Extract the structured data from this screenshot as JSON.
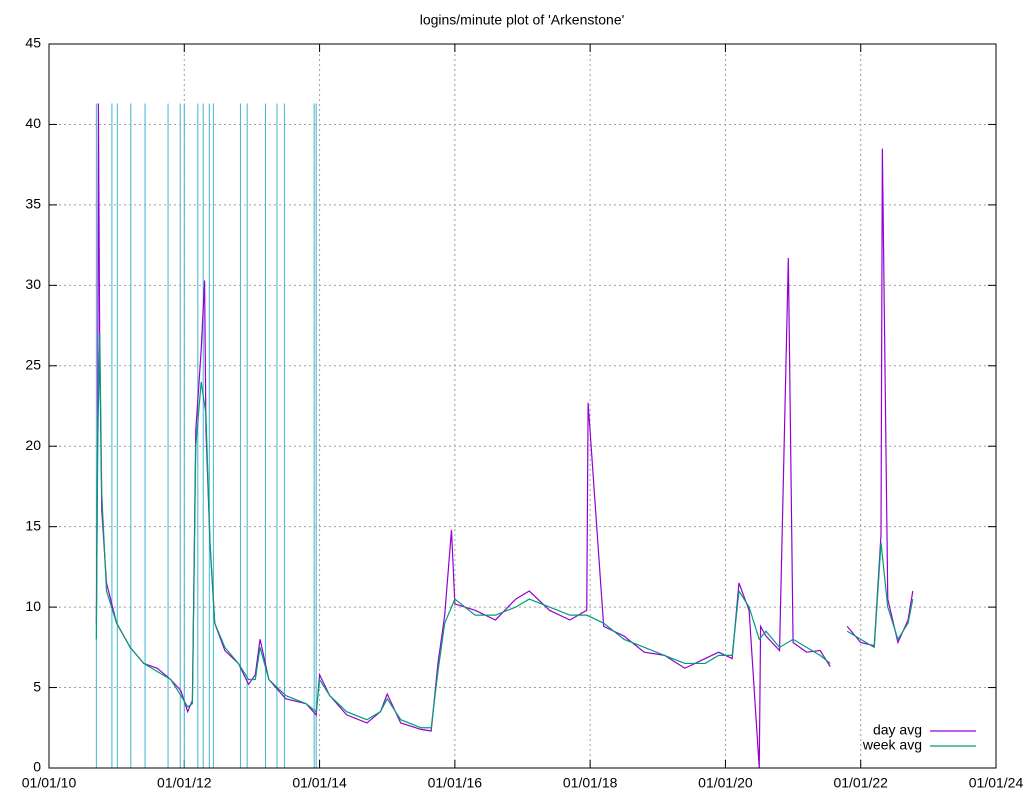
{
  "chart_data": {
    "type": "line",
    "title": "logins/minute plot of 'Arkenstone'",
    "xlim": [
      2010,
      2024
    ],
    "xticks": [
      {
        "value": 2010,
        "label": "01/01/10"
      },
      {
        "value": 2012,
        "label": "01/01/12"
      },
      {
        "value": 2014,
        "label": "01/01/14"
      },
      {
        "value": 2016,
        "label": "01/01/16"
      },
      {
        "value": 2018,
        "label": "01/01/18"
      },
      {
        "value": 2020,
        "label": "01/01/20"
      },
      {
        "value": 2022,
        "label": "01/01/22"
      },
      {
        "value": 2024,
        "label": "01/01/24"
      }
    ],
    "ylim": [
      0,
      45
    ],
    "yticks": [
      0,
      5,
      10,
      15,
      20,
      25,
      30,
      35,
      40,
      45
    ],
    "grid": true,
    "legend": "bottom-right",
    "event_color": "#3fb6d0",
    "event_x": [
      2010.7,
      2010.93,
      2011.01,
      2011.21,
      2011.42,
      2011.76,
      2011.94,
      2012.0,
      2012.2,
      2012.28,
      2012.37,
      2012.43,
      2012.83,
      2012.93,
      2013.2,
      2013.37,
      2013.48,
      2013.92,
      2013.95
    ],
    "series": [
      {
        "name": "day avg",
        "color": "#9400d3",
        "x": [
          2010.7,
          2010.72,
          2010.73,
          2010.75,
          2010.78,
          2010.85,
          2011.0,
          2011.2,
          2011.4,
          2011.6,
          2011.8,
          2011.95,
          2012.05,
          2012.12,
          2012.17,
          2012.25,
          2012.3,
          2012.32,
          2012.38,
          2012.45,
          2012.6,
          2012.8,
          2012.95,
          2013.05,
          2013.12,
          2013.25,
          2013.5,
          2013.8,
          2013.95,
          2014.0,
          2014.15,
          2014.4,
          2014.7,
          2014.9,
          2015.0,
          2015.2,
          2015.5,
          2015.65,
          2015.75,
          2015.85,
          2015.95,
          2016.0,
          2016.3,
          2016.6,
          2016.9,
          2017.1,
          2017.4,
          2017.7,
          2017.95,
          2017.97,
          2018.2,
          2018.5,
          2018.8,
          2019.1,
          2019.4,
          2019.7,
          2019.9,
          2020.1,
          2020.2,
          2020.35,
          2020.5,
          2020.52,
          2020.6,
          2020.8,
          2020.93,
          2021.0,
          2021.2,
          2021.4,
          2021.55,
          2021.65,
          2021.8,
          2022.0,
          2022.2,
          2022.3,
          2022.32,
          2022.4,
          2022.55,
          2022.7,
          2022.77
        ],
        "values": [
          9,
          21,
          41.3,
          26,
          16,
          11.5,
          9,
          7.5,
          6.5,
          6.2,
          5.5,
          4.8,
          3.5,
          4.2,
          21,
          26,
          30.3,
          21,
          14,
          9,
          7.3,
          6.5,
          5.2,
          5.8,
          8,
          5.5,
          4.3,
          4,
          3.3,
          5.8,
          4.5,
          3.3,
          2.8,
          3.5,
          4.6,
          2.8,
          2.4,
          2.3,
          6.5,
          9.5,
          14.8,
          10.2,
          9.8,
          9.2,
          10.5,
          11,
          9.8,
          9.2,
          9.8,
          22.7,
          8.8,
          8.2,
          7.2,
          7,
          6.2,
          6.8,
          7.2,
          6.8,
          11.5,
          9.8,
          0,
          8.8,
          8.2,
          7.3,
          31.7,
          7.8,
          7.2,
          7.3,
          6.3,
          null,
          8.8,
          7.8,
          7.6,
          14.5,
          38.5,
          10.5,
          7.8,
          9.2,
          11
        ]
      },
      {
        "name": "week avg",
        "color": "#009e73",
        "x": [
          2010.7,
          2010.72,
          2010.75,
          2010.78,
          2010.85,
          2011.0,
          2011.2,
          2011.4,
          2011.6,
          2011.8,
          2011.95,
          2012.05,
          2012.12,
          2012.17,
          2012.25,
          2012.32,
          2012.38,
          2012.45,
          2012.6,
          2012.8,
          2012.95,
          2013.05,
          2013.12,
          2013.25,
          2013.5,
          2013.8,
          2013.95,
          2014.0,
          2014.15,
          2014.4,
          2014.7,
          2014.9,
          2015.0,
          2015.2,
          2015.5,
          2015.65,
          2015.75,
          2015.85,
          2016.0,
          2016.3,
          2016.6,
          2016.9,
          2017.1,
          2017.4,
          2017.7,
          2017.95,
          2018.2,
          2018.5,
          2018.8,
          2019.1,
          2019.4,
          2019.7,
          2019.9,
          2020.1,
          2020.2,
          2020.35,
          2020.5,
          2020.6,
          2020.8,
          2021.0,
          2021.2,
          2021.4,
          2021.55,
          2021.65,
          2021.8,
          2022.0,
          2022.2,
          2022.3,
          2022.4,
          2022.55,
          2022.7,
          2022.77
        ],
        "values": [
          8,
          20,
          27,
          17,
          11,
          9,
          7.5,
          6.5,
          6,
          5.5,
          4.5,
          3.8,
          4,
          20,
          24,
          22,
          14,
          9,
          7.5,
          6.5,
          5.5,
          5.5,
          7.5,
          5.5,
          4.5,
          4,
          3.5,
          5.5,
          4.5,
          3.5,
          3,
          3.5,
          4.3,
          3,
          2.5,
          2.5,
          6,
          9,
          10.5,
          9.5,
          9.5,
          10,
          10.5,
          10,
          9.5,
          9.5,
          9,
          8,
          7.5,
          7,
          6.5,
          6.5,
          7,
          7,
          11,
          10,
          8,
          8.5,
          7.5,
          8,
          7.5,
          7,
          6.5,
          null,
          8.5,
          8,
          7.5,
          14,
          10,
          8,
          9,
          10.5
        ]
      }
    ]
  }
}
